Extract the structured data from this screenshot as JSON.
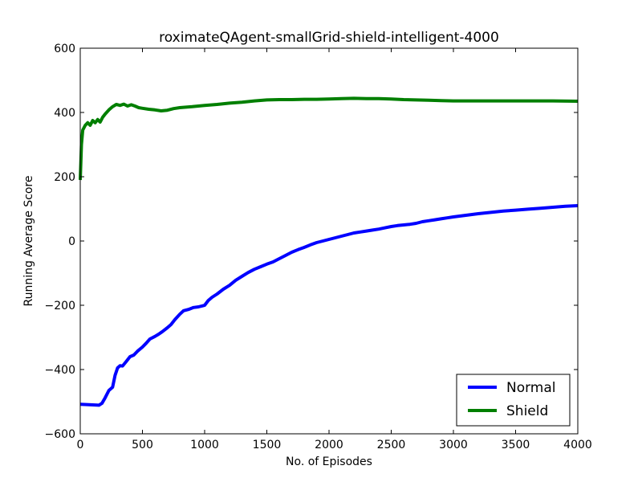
{
  "chart_data": {
    "type": "line",
    "title": "roximateQAgent-smallGrid-shield-intelligent-4000",
    "xlabel": "No. of Episodes",
    "ylabel": "Running Average Score",
    "xlim": [
      0,
      4000
    ],
    "ylim": [
      -600,
      600
    ],
    "xticks": [
      0,
      500,
      1000,
      1500,
      2000,
      2500,
      3000,
      3500,
      4000
    ],
    "yticks": [
      -600,
      -400,
      -200,
      0,
      200,
      400,
      600
    ],
    "xtick_labels": [
      "0",
      "500",
      "1000",
      "1500",
      "2000",
      "2500",
      "3000",
      "3500",
      "4000"
    ],
    "ytick_labels": [
      "−600",
      "−400",
      "−200",
      "0",
      "200",
      "400",
      "600"
    ],
    "grid": false,
    "legend_position": "lower-right",
    "series": [
      {
        "name": "Normal",
        "color": "#0000ff",
        "points": [
          [
            0,
            -508
          ],
          [
            50,
            -509
          ],
          [
            100,
            -510
          ],
          [
            150,
            -511
          ],
          [
            175,
            -505
          ],
          [
            200,
            -488
          ],
          [
            230,
            -465
          ],
          [
            260,
            -455
          ],
          [
            280,
            -418
          ],
          [
            300,
            -395
          ],
          [
            320,
            -388
          ],
          [
            340,
            -389
          ],
          [
            370,
            -375
          ],
          [
            400,
            -360
          ],
          [
            430,
            -355
          ],
          [
            460,
            -343
          ],
          [
            500,
            -330
          ],
          [
            530,
            -318
          ],
          [
            560,
            -305
          ],
          [
            600,
            -297
          ],
          [
            630,
            -290
          ],
          [
            660,
            -282
          ],
          [
            700,
            -270
          ],
          [
            730,
            -260
          ],
          [
            760,
            -245
          ],
          [
            800,
            -228
          ],
          [
            830,
            -217
          ],
          [
            870,
            -213
          ],
          [
            910,
            -207
          ],
          [
            950,
            -205
          ],
          [
            1000,
            -200
          ],
          [
            1030,
            -185
          ],
          [
            1060,
            -175
          ],
          [
            1100,
            -165
          ],
          [
            1150,
            -150
          ],
          [
            1200,
            -138
          ],
          [
            1250,
            -122
          ],
          [
            1300,
            -110
          ],
          [
            1350,
            -98
          ],
          [
            1400,
            -88
          ],
          [
            1450,
            -80
          ],
          [
            1500,
            -72
          ],
          [
            1550,
            -65
          ],
          [
            1600,
            -55
          ],
          [
            1650,
            -45
          ],
          [
            1700,
            -35
          ],
          [
            1750,
            -27
          ],
          [
            1800,
            -20
          ],
          [
            1850,
            -12
          ],
          [
            1900,
            -5
          ],
          [
            1950,
            0
          ],
          [
            2000,
            5
          ],
          [
            2050,
            10
          ],
          [
            2100,
            15
          ],
          [
            2150,
            20
          ],
          [
            2200,
            25
          ],
          [
            2250,
            28
          ],
          [
            2300,
            31
          ],
          [
            2350,
            34
          ],
          [
            2400,
            37
          ],
          [
            2450,
            41
          ],
          [
            2500,
            45
          ],
          [
            2550,
            48
          ],
          [
            2600,
            50
          ],
          [
            2650,
            52
          ],
          [
            2700,
            55
          ],
          [
            2750,
            60
          ],
          [
            2800,
            63
          ],
          [
            2850,
            66
          ],
          [
            2900,
            69
          ],
          [
            2950,
            72
          ],
          [
            3000,
            75
          ],
          [
            3100,
            80
          ],
          [
            3200,
            85
          ],
          [
            3300,
            89
          ],
          [
            3400,
            93
          ],
          [
            3500,
            96
          ],
          [
            3600,
            99
          ],
          [
            3700,
            102
          ],
          [
            3800,
            105
          ],
          [
            3900,
            108
          ],
          [
            4000,
            110
          ]
        ]
      },
      {
        "name": "Shield",
        "color": "#007f00",
        "points": [
          [
            0,
            190
          ],
          [
            10,
            300
          ],
          [
            20,
            345
          ],
          [
            40,
            360
          ],
          [
            60,
            368
          ],
          [
            80,
            360
          ],
          [
            100,
            375
          ],
          [
            120,
            368
          ],
          [
            140,
            378
          ],
          [
            160,
            370
          ],
          [
            180,
            385
          ],
          [
            200,
            395
          ],
          [
            230,
            408
          ],
          [
            260,
            418
          ],
          [
            290,
            425
          ],
          [
            320,
            422
          ],
          [
            350,
            426
          ],
          [
            380,
            420
          ],
          [
            410,
            424
          ],
          [
            440,
            420
          ],
          [
            470,
            415
          ],
          [
            500,
            413
          ],
          [
            550,
            410
          ],
          [
            600,
            408
          ],
          [
            650,
            405
          ],
          [
            700,
            407
          ],
          [
            750,
            412
          ],
          [
            800,
            415
          ],
          [
            900,
            418
          ],
          [
            1000,
            422
          ],
          [
            1100,
            425
          ],
          [
            1200,
            429
          ],
          [
            1300,
            432
          ],
          [
            1400,
            436
          ],
          [
            1500,
            439
          ],
          [
            1600,
            440
          ],
          [
            1700,
            440
          ],
          [
            1800,
            441
          ],
          [
            1900,
            441
          ],
          [
            2000,
            442
          ],
          [
            2100,
            443
          ],
          [
            2200,
            444
          ],
          [
            2300,
            443
          ],
          [
            2400,
            443
          ],
          [
            2500,
            442
          ],
          [
            2600,
            440
          ],
          [
            2700,
            439
          ],
          [
            2800,
            438
          ],
          [
            2900,
            437
          ],
          [
            3000,
            436
          ],
          [
            3200,
            436
          ],
          [
            3400,
            436
          ],
          [
            3600,
            436
          ],
          [
            3800,
            436
          ],
          [
            4000,
            435
          ]
        ]
      }
    ]
  }
}
